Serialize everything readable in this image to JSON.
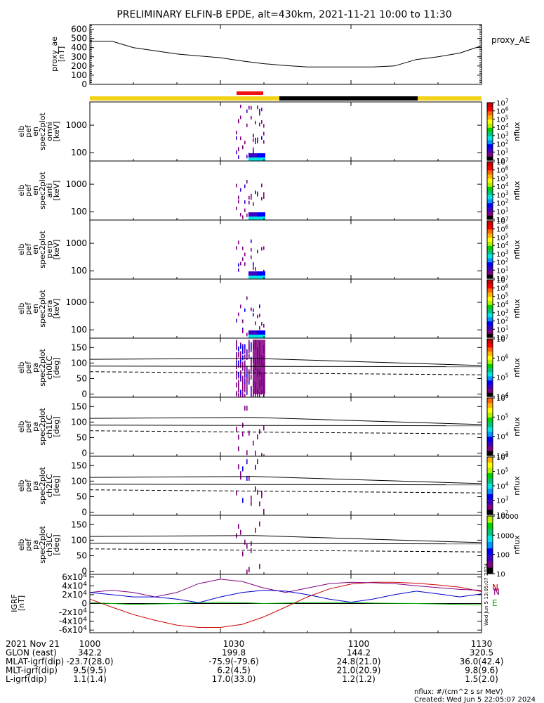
{
  "title": "PRELIMINARY ELFIN-B EPDE, alt=430km, 2021-11-21 10:00 to 11:30",
  "palette": [
    "#000000",
    "#800080",
    "#3c00c8",
    "#0000ff",
    "#0096ff",
    "#00e6e6",
    "#00c878",
    "#00d200",
    "#b4f000",
    "#ffff00",
    "#ffb400",
    "#ff6400",
    "#ff0000",
    "#c80000"
  ],
  "chart_data": [
    {
      "type": "line",
      "panel": "proxy_ae",
      "ylabel": "proxy_ae\n[nT]",
      "legend": "proxy_AE",
      "ylim": [
        0,
        650
      ],
      "yticks": [
        0,
        100,
        200,
        300,
        400,
        500,
        600
      ],
      "x": [
        0,
        5,
        10,
        15,
        20,
        25,
        30,
        35,
        40,
        45,
        50,
        55,
        60,
        65,
        70,
        75,
        80,
        85,
        90
      ],
      "values": [
        470,
        470,
        400,
        365,
        330,
        310,
        290,
        255,
        225,
        205,
        190,
        190,
        190,
        190,
        200,
        270,
        300,
        340,
        420
      ]
    },
    {
      "type": "heatmap",
      "panel": "omni",
      "ylabel": "elb\npef\nen\nspec2plot\nomni\n[keV]",
      "yticks": [
        100,
        1000
      ],
      "ylog": true,
      "ylim": [
        50,
        7000
      ],
      "colorbar": {
        "label": "nflux",
        "ticks": [
          "10",
          "10^1",
          "10^2",
          "10^3",
          "10^4",
          "10^5",
          "10^6",
          "10^7"
        ]
      }
    },
    {
      "type": "heatmap",
      "panel": "anti",
      "ylabel": "elb\npef\nen\nspec2plot\nanti\n[keV]",
      "yticks": [
        100,
        1000
      ],
      "ylog": true,
      "ylim": [
        50,
        7000
      ],
      "colorbar": {
        "label": "nflux",
        "ticks": [
          "10",
          "10^1",
          "10^2",
          "10^3",
          "10^4",
          "10^5",
          "10^6",
          "10^7"
        ]
      }
    },
    {
      "type": "heatmap",
      "panel": "perp",
      "ylabel": "elb\npef\nen\nspec2plot\nperp\n[keV]",
      "yticks": [
        100,
        1000
      ],
      "ylog": true,
      "ylim": [
        50,
        7000
      ],
      "colorbar": {
        "label": "nflux",
        "ticks": [
          "10",
          "10^1",
          "10^2",
          "10^3",
          "10^4",
          "10^5",
          "10^6",
          "10^7"
        ]
      }
    },
    {
      "type": "heatmap",
      "panel": "para",
      "ylabel": "elb\npef\nen\nspec2plot\npara\n[keV]",
      "yticks": [
        100,
        1000
      ],
      "ylog": true,
      "ylim": [
        50,
        7000
      ],
      "colorbar": {
        "label": "nflux",
        "ticks": [
          "10",
          "10^1",
          "10^2",
          "10^3",
          "10^4",
          "10^5",
          "10^6",
          "10^7"
        ]
      }
    },
    {
      "type": "heatmap",
      "panel": "ch0LC",
      "ylabel": "elb\npef\npa\nspec2plot\nch0LC\n[deg]",
      "yticks": [
        0,
        50,
        100,
        150
      ],
      "ylim": [
        -10,
        180
      ],
      "colorbar": {
        "label": "nflux",
        "ticks": [
          "10^4",
          "10^5",
          "10^6",
          "10^7"
        ]
      }
    },
    {
      "type": "heatmap",
      "panel": "ch1LC",
      "ylabel": "elb\npef\npa\nspec2plot\nch1LC\n[deg]",
      "yticks": [
        0,
        50,
        100,
        150
      ],
      "ylim": [
        -10,
        180
      ],
      "colorbar": {
        "label": "nflux",
        "ticks": [
          "10^3",
          "10^4",
          "10^5",
          "10^6"
        ]
      }
    },
    {
      "type": "heatmap",
      "panel": "ch2LC",
      "ylabel": "elb\npef\npa\nspec2plot\nch2LC\n[deg]",
      "yticks": [
        0,
        50,
        100,
        150
      ],
      "ylim": [
        -10,
        180
      ],
      "colorbar": {
        "label": "nflux",
        "ticks": [
          "10^2",
          "10^3",
          "10^4",
          "10^5",
          "10^6"
        ]
      }
    },
    {
      "type": "heatmap",
      "panel": "ch3LC",
      "ylabel": "elb\npef\npa\nspec2plot\nch3LC\n[deg]",
      "yticks": [
        0,
        50,
        100,
        150
      ],
      "ylim": [
        -10,
        180
      ],
      "colorbar": {
        "label": "nflux",
        "ticks": [
          "10",
          "100",
          "1000",
          "10000"
        ]
      }
    },
    {
      "type": "line",
      "panel": "igrf",
      "ylabel": "IGRF\n[nT]",
      "ylim": [
        -66000,
        66000
      ],
      "yticks": [
        -60000,
        -40000,
        -20000,
        0,
        20000,
        40000,
        60000
      ],
      "ytick_labels": [
        "-6x10^4",
        "-4x10^4",
        "-2x10^4",
        "0",
        "2x10^4",
        "4x10^4",
        "6x10^4"
      ],
      "x": [
        0,
        5,
        10,
        15,
        20,
        25,
        30,
        35,
        40,
        45,
        50,
        55,
        60,
        65,
        70,
        75,
        80,
        85,
        90
      ],
      "series": [
        {
          "name": "N",
          "color": "#cc0000",
          "values": [
            10000,
            -8000,
            -25000,
            -38000,
            -49000,
            -54000,
            -54000,
            -47000,
            -30000,
            -8000,
            15000,
            33000,
            44000,
            48000,
            48000,
            46000,
            42000,
            37000,
            27000
          ]
        },
        {
          "name": "N",
          "color": "#800080",
          "values": [
            25000,
            30000,
            25000,
            15000,
            25000,
            45000,
            55000,
            50000,
            35000,
            25000,
            35000,
            45000,
            48000,
            47000,
            45000,
            40000,
            36000,
            32000,
            30000
          ]
        },
        {
          "name": "E",
          "color": "#00b000",
          "values": [
            2000,
            0,
            -2000,
            -1000,
            0,
            2000,
            3000,
            2000,
            0,
            1000,
            2000,
            2500,
            2000,
            1000,
            500,
            0,
            -1000,
            -2000,
            -3000
          ]
        },
        {
          "name": "",
          "color": "#0000cc",
          "values": [
            25000,
            20000,
            15000,
            15000,
            10000,
            2000,
            15000,
            25000,
            30000,
            28000,
            20000,
            10000,
            3000,
            10000,
            20000,
            28000,
            22000,
            15000,
            22000
          ]
        }
      ]
    }
  ],
  "x_axis": {
    "ticks": [
      "1000",
      "1030",
      "1100",
      "1130"
    ],
    "tick_minutes": [
      0,
      30,
      60,
      90
    ]
  },
  "ephemeris": {
    "rows": [
      {
        "label": "2021 Nov 21",
        "values": [
          "1000",
          "1030",
          "1100",
          "1130"
        ]
      },
      {
        "label": "GLON (east)",
        "values": [
          "342.2",
          "199.8",
          "144.2",
          "320.5"
        ]
      },
      {
        "label": "MLAT-igrf(dip)",
        "values": [
          "-23.7(28.0)",
          "-75.9(-79.6)",
          "24.8(21.0)",
          "36.0(42.4)"
        ]
      },
      {
        "label": "MLT-igrf(dip)",
        "values": [
          "9.5(9.5)",
          "6.2(4.5)",
          "21.0(20.9)",
          "9.8(9.6)"
        ]
      },
      {
        "label": "L-igrf(dip)",
        "values": [
          "1.1(1.4)",
          "17.0(33.0)",
          "1.2(1.2)",
          "1.5(2.0)"
        ]
      }
    ]
  },
  "footer": {
    "units": "nflux: #/(cm^2 s sr MeV)",
    "created": "Created: Wed Jun  5 22:05:07 2024",
    "side_stamp": "Wed Jun  5 13:05:07 2024"
  }
}
